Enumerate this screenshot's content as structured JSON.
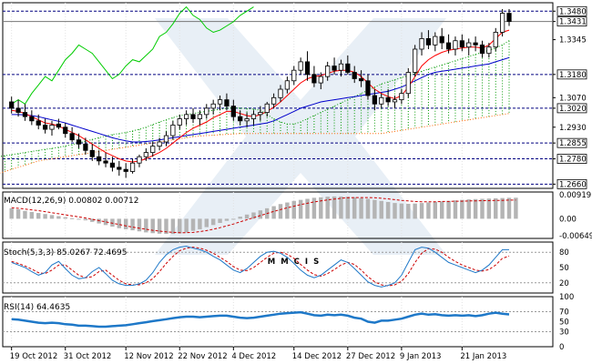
{
  "chart_data": [
    {
      "type": "candlestick",
      "name": "price",
      "ylim": [
        1.264,
        1.352
      ],
      "price_ticks": [
        "1.3480",
        "1.3431",
        "1.3345",
        "1.3180",
        "1.3070",
        "1.3020",
        "1.2930",
        "1.2855",
        "1.2780",
        "1.2660"
      ],
      "hlines": [
        1.348,
        1.318,
        1.302,
        1.2855,
        1.278,
        1.266
      ],
      "boxed_ticks": [
        "1.3480",
        "1.3431",
        "1.3180",
        "1.3020",
        "1.2855",
        "1.2780",
        "1.2660"
      ],
      "current_price": 1.3431,
      "x_labels": [
        "19 Oct 2012",
        "31 Oct 2012",
        "12 Nov 2012",
        "22 Nov 2012",
        "4 Dec 2012",
        "14 Dec 2012",
        "27 Dec 2012",
        "9 Jan 2013",
        "21 Jan 2013"
      ],
      "ohlc": [
        [
          1.305,
          1.3075,
          1.2995,
          1.302
        ],
        [
          1.302,
          1.306,
          1.298,
          1.3
        ],
        [
          1.3,
          1.304,
          1.296,
          1.298
        ],
        [
          1.298,
          1.301,
          1.294,
          1.296
        ],
        [
          1.296,
          1.299,
          1.292,
          1.294
        ],
        [
          1.294,
          1.297,
          1.29,
          1.292
        ],
        [
          1.292,
          1.296,
          1.289,
          1.294
        ],
        [
          1.2945,
          1.297,
          1.292,
          1.293
        ],
        [
          1.293,
          1.295,
          1.288,
          1.29
        ],
        [
          1.29,
          1.293,
          1.286,
          1.287
        ],
        [
          1.287,
          1.29,
          1.283,
          1.285
        ],
        [
          1.285,
          1.288,
          1.28,
          1.282
        ],
        [
          1.282,
          1.285,
          1.277,
          1.279
        ],
        [
          1.279,
          1.282,
          1.275,
          1.277
        ],
        [
          1.277,
          1.281,
          1.274,
          1.276
        ],
        [
          1.276,
          1.279,
          1.272,
          1.274
        ],
        [
          1.274,
          1.277,
          1.27,
          1.273
        ],
        [
          1.273,
          1.276,
          1.269,
          1.272
        ],
        [
          1.272,
          1.278,
          1.271,
          1.276
        ],
        [
          1.276,
          1.28,
          1.274,
          1.279
        ],
        [
          1.279,
          1.283,
          1.277,
          1.281
        ],
        [
          1.281,
          1.286,
          1.279,
          1.284
        ],
        [
          1.284,
          1.288,
          1.282,
          1.286
        ],
        [
          1.286,
          1.291,
          1.284,
          1.289
        ],
        [
          1.289,
          1.296,
          1.287,
          1.294
        ],
        [
          1.294,
          1.299,
          1.292,
          1.297
        ],
        [
          1.297,
          1.301,
          1.294,
          1.299
        ],
        [
          1.299,
          1.302,
          1.295,
          1.297
        ],
        [
          1.297,
          1.301,
          1.294,
          1.299
        ],
        [
          1.299,
          1.304,
          1.297,
          1.302
        ],
        [
          1.302,
          1.306,
          1.299,
          1.304
        ],
        [
          1.304,
          1.308,
          1.301,
          1.306
        ],
        [
          1.306,
          1.309,
          1.301,
          1.303
        ],
        [
          1.303,
          1.306,
          1.296,
          1.298
        ],
        [
          1.298,
          1.301,
          1.294,
          1.296
        ],
        [
          1.296,
          1.3,
          1.293,
          1.297
        ],
        [
          1.297,
          1.301,
          1.294,
          1.299
        ],
        [
          1.299,
          1.303,
          1.296,
          1.3
        ],
        [
          1.3,
          1.305,
          1.298,
          1.304
        ],
        [
          1.304,
          1.309,
          1.302,
          1.307
        ],
        [
          1.307,
          1.313,
          1.305,
          1.311
        ],
        [
          1.311,
          1.317,
          1.309,
          1.315
        ],
        [
          1.315,
          1.322,
          1.313,
          1.32
        ],
        [
          1.32,
          1.326,
          1.318,
          1.324
        ],
        [
          1.324,
          1.329,
          1.315,
          1.318
        ],
        [
          1.318,
          1.322,
          1.312,
          1.314
        ],
        [
          1.314,
          1.319,
          1.311,
          1.317
        ],
        [
          1.317,
          1.324,
          1.315,
          1.322
        ],
        [
          1.322,
          1.326,
          1.318,
          1.32
        ],
        [
          1.32,
          1.325,
          1.317,
          1.323
        ],
        [
          1.323,
          1.327,
          1.318,
          1.319
        ],
        [
          1.319,
          1.322,
          1.314,
          1.316
        ],
        [
          1.316,
          1.32,
          1.312,
          1.315
        ],
        [
          1.315,
          1.318,
          1.306,
          1.308
        ],
        [
          1.308,
          1.311,
          1.301,
          1.304
        ],
        [
          1.304,
          1.309,
          1.302,
          1.307
        ],
        [
          1.307,
          1.311,
          1.303,
          1.305
        ],
        [
          1.305,
          1.308,
          1.302,
          1.306
        ],
        [
          1.306,
          1.311,
          1.304,
          1.309
        ],
        [
          1.309,
          1.321,
          1.307,
          1.319
        ],
        [
          1.319,
          1.332,
          1.317,
          1.33
        ],
        [
          1.33,
          1.338,
          1.327,
          1.335
        ],
        [
          1.335,
          1.339,
          1.33,
          1.332
        ],
        [
          1.332,
          1.338,
          1.329,
          1.336
        ],
        [
          1.336,
          1.34,
          1.33,
          1.333
        ],
        [
          1.333,
          1.337,
          1.328,
          1.33
        ],
        [
          1.33,
          1.336,
          1.327,
          1.334
        ],
        [
          1.334,
          1.337,
          1.329,
          1.331
        ],
        [
          1.331,
          1.335,
          1.327,
          1.333
        ],
        [
          1.333,
          1.336,
          1.329,
          1.332
        ],
        [
          1.332,
          1.334,
          1.326,
          1.328
        ],
        [
          1.328,
          1.333,
          1.326,
          1.331
        ],
        [
          1.331,
          1.34,
          1.329,
          1.338
        ],
        [
          1.338,
          1.349,
          1.336,
          1.347
        ],
        [
          1.347,
          1.349,
          1.341,
          1.3431
        ]
      ],
      "tenkan": [
        1.301,
        1.3005,
        1.2995,
        1.298,
        1.2965,
        1.295,
        1.2945,
        1.2935,
        1.292,
        1.2905,
        1.289,
        1.287,
        1.285,
        1.283,
        1.281,
        1.2795,
        1.278,
        1.277,
        1.2765,
        1.277,
        1.278,
        1.2795,
        1.281,
        1.283,
        1.2855,
        1.288,
        1.2905,
        1.2925,
        1.294,
        1.2955,
        1.2975,
        1.299,
        1.3005,
        1.3005,
        1.2995,
        1.2985,
        1.298,
        1.299,
        1.3005,
        1.3025,
        1.305,
        1.308,
        1.311,
        1.314,
        1.316,
        1.317,
        1.3175,
        1.3185,
        1.3195,
        1.32,
        1.32,
        1.319,
        1.317,
        1.314,
        1.311,
        1.309,
        1.3075,
        1.3065,
        1.308,
        1.312,
        1.317,
        1.322,
        1.325,
        1.327,
        1.3285,
        1.3295,
        1.33,
        1.3305,
        1.331,
        1.331,
        1.3305,
        1.332,
        1.335,
        1.338,
        1.339
      ],
      "kijun": [
        1.299,
        1.299,
        1.2988,
        1.2985,
        1.298,
        1.2972,
        1.2965,
        1.2958,
        1.295,
        1.294,
        1.293,
        1.292,
        1.291,
        1.29,
        1.289,
        1.288,
        1.2872,
        1.2865,
        1.286,
        1.286,
        1.2862,
        1.2865,
        1.287,
        1.2875,
        1.288,
        1.2885,
        1.289,
        1.2895,
        1.29,
        1.2905,
        1.291,
        1.2915,
        1.292,
        1.2925,
        1.293,
        1.2935,
        1.294,
        1.2945,
        1.295,
        1.296,
        1.2975,
        1.299,
        1.3005,
        1.302,
        1.303,
        1.304,
        1.305,
        1.3055,
        1.306,
        1.3065,
        1.307,
        1.3075,
        1.308,
        1.3085,
        1.309,
        1.3095,
        1.31,
        1.311,
        1.312,
        1.3135,
        1.315,
        1.3165,
        1.318,
        1.319,
        1.3195,
        1.32,
        1.3205,
        1.321,
        1.3215,
        1.322,
        1.3225,
        1.323,
        1.324,
        1.325,
        1.326
      ],
      "chikou": [
        1.304,
        1.306,
        1.304,
        1.309,
        1.313,
        1.317,
        1.315,
        1.32,
        1.325,
        1.328,
        1.332,
        1.33,
        1.328,
        1.324,
        1.32,
        1.316,
        1.318,
        1.322,
        1.325,
        1.324,
        1.327,
        1.33,
        1.336,
        1.338,
        1.342,
        1.347,
        1.35,
        1.346,
        1.344,
        1.34,
        1.338,
        1.339,
        1.341,
        1.343,
        1.346,
        1.348,
        1.35
      ],
      "span_a": [
        1.276,
        1.2765,
        1.277,
        1.2775,
        1.278,
        1.2785,
        1.279,
        1.2795,
        1.28,
        1.2805,
        1.281,
        1.2815,
        1.282,
        1.2825,
        1.283,
        1.2835,
        1.284,
        1.2848,
        1.2856,
        1.2864,
        1.2872,
        1.288,
        1.2888,
        1.2895,
        1.29,
        1.2905,
        1.2912,
        1.292,
        1.293,
        1.2942,
        1.2955,
        1.2965,
        1.2975,
        1.2985,
        1.299,
        1.2995,
        1.3,
        1.3005,
        1.301,
        1.3015,
        1.302,
        1.3022,
        1.302,
        1.3018,
        1.3016,
        1.301,
        1.299,
        1.297,
        1.2955,
        1.2945,
        1.2945,
        1.2955,
        1.297,
        1.2985,
        1.3,
        1.3015,
        1.303,
        1.3045,
        1.306,
        1.3075,
        1.309,
        1.3105,
        1.312,
        1.3135,
        1.3145,
        1.3155,
        1.3165,
        1.3175,
        1.3185,
        1.3195,
        1.3205,
        1.3215,
        1.3225,
        1.3235,
        1.3245,
        1.3255,
        1.3265,
        1.3275,
        1.3285,
        1.3295,
        1.3305,
        1.332,
        1.334
      ],
      "span_b": [
        1.265,
        1.266,
        1.267,
        1.268,
        1.269,
        1.27,
        1.271,
        1.272,
        1.273,
        1.274,
        1.275,
        1.276,
        1.277,
        1.2775,
        1.278,
        1.2785,
        1.279,
        1.2795,
        1.28,
        1.2805,
        1.281,
        1.2815,
        1.282,
        1.2825,
        1.283,
        1.2835,
        1.284,
        1.2845,
        1.285,
        1.2855,
        1.286,
        1.2865,
        1.287,
        1.2875,
        1.288,
        1.2885,
        1.2888,
        1.289,
        1.2892,
        1.2894,
        1.2896,
        1.2898,
        1.29,
        1.29,
        1.29,
        1.29,
        1.29,
        1.29,
        1.29,
        1.29,
        1.29,
        1.29,
        1.29,
        1.29,
        1.29,
        1.29,
        1.29,
        1.29,
        1.29,
        1.29,
        1.29,
        1.29,
        1.29,
        1.29,
        1.2905,
        1.291,
        1.2915,
        1.292,
        1.2925,
        1.293,
        1.2935,
        1.294,
        1.2945,
        1.295,
        1.2955,
        1.296,
        1.2965,
        1.297,
        1.2975,
        1.298,
        1.2985,
        1.299,
        1.2995
      ],
      "colors": {
        "bull": "#ffffff",
        "bear": "#000000",
        "tenkan": "#ff0000",
        "kijun": "#0000cc",
        "chikou": "#00cc00",
        "cloud_a": "#009900",
        "cloud_b": "#ff6600",
        "hline": "#000080",
        "grid": "#c8c8c8"
      }
    },
    {
      "type": "macd",
      "name": "macd",
      "label": "MACD(12,26,9) 0.00802 0.00712",
      "ticks": [
        "0.00919",
        "0.00",
        "-0.00649"
      ],
      "ylim": [
        -0.0075,
        0.0102
      ],
      "tick_values": [
        0.00919,
        0.0,
        -0.00649
      ],
      "histogram": [
        0.004,
        0.0036,
        0.003,
        0.0026,
        0.0022,
        0.0018,
        0.0014,
        0.001,
        0.0006,
        0.0002,
        -0.0002,
        -0.0006,
        -0.0012,
        -0.0018,
        -0.0024,
        -0.003,
        -0.0036,
        -0.004,
        -0.0044,
        -0.0048,
        -0.0052,
        -0.0055,
        -0.0057,
        -0.0058,
        -0.0058,
        -0.0056,
        -0.0052,
        -0.0046,
        -0.004,
        -0.0032,
        -0.0024,
        -0.0016,
        -0.0008,
        0.0,
        0.0008,
        0.0016,
        0.0024,
        0.0032,
        0.004,
        0.0048,
        0.0056,
        0.0062,
        0.0068,
        0.0072,
        0.0076,
        0.008,
        0.0082,
        0.0084,
        0.0085,
        0.0085,
        0.0084,
        0.0082,
        0.0079,
        0.0076,
        0.0072,
        0.0068,
        0.0064,
        0.006,
        0.0058,
        0.0057,
        0.0058,
        0.006,
        0.0062,
        0.0064,
        0.0066,
        0.0068,
        0.007,
        0.0072,
        0.0074,
        0.0075,
        0.0076,
        0.0077,
        0.0078,
        0.0079,
        0.008,
        0.00802
      ],
      "signal": [
        0.0042,
        0.004,
        0.0037,
        0.0034,
        0.0031,
        0.0027,
        0.0023,
        0.0019,
        0.0015,
        0.0011,
        0.0007,
        0.0003,
        -0.0002,
        -0.0007,
        -0.0012,
        -0.0017,
        -0.0022,
        -0.0027,
        -0.0032,
        -0.0036,
        -0.004,
        -0.0044,
        -0.0047,
        -0.005,
        -0.0052,
        -0.0053,
        -0.0053,
        -0.0052,
        -0.0049,
        -0.0045,
        -0.004,
        -0.0034,
        -0.0027,
        -0.002,
        -0.0012,
        -0.0004,
        0.0004,
        0.0012,
        0.002,
        0.0028,
        0.0035,
        0.0042,
        0.0048,
        0.0054,
        0.0059,
        0.0064,
        0.0068,
        0.0072,
        0.0075,
        0.0078,
        0.008,
        0.0081,
        0.0081,
        0.0081,
        0.008,
        0.0078,
        0.0076,
        0.0073,
        0.007,
        0.0068,
        0.0066,
        0.0065,
        0.0065,
        0.0065,
        0.0066,
        0.0066,
        0.0067,
        0.0067,
        0.0068,
        0.0068,
        0.0069,
        0.0069,
        0.007,
        0.007,
        0.0071,
        0.00712
      ],
      "colors": {
        "hist": "#b4b4b4",
        "signal": "#cc0000"
      }
    },
    {
      "type": "stochastic",
      "name": "stoch",
      "label": "Stoch(5,3,3) 85.0267 72.4695",
      "ticks": [
        "80",
        "50",
        "20"
      ],
      "ylim": [
        0,
        100
      ],
      "tick_values": [
        80,
        50,
        20
      ],
      "k": [
        60,
        55,
        50,
        42,
        35,
        40,
        55,
        62,
        48,
        35,
        28,
        30,
        42,
        50,
        38,
        25,
        18,
        15,
        15,
        18,
        25,
        40,
        60,
        75,
        85,
        90,
        92,
        88,
        85,
        80,
        72,
        65,
        55,
        45,
        40,
        48,
        60,
        72,
        80,
        82,
        78,
        70,
        58,
        45,
        35,
        30,
        35,
        45,
        55,
        65,
        60,
        48,
        35,
        22,
        15,
        12,
        15,
        20,
        35,
        60,
        85,
        90,
        88,
        80,
        70,
        60,
        55,
        50,
        45,
        40,
        45,
        55,
        70,
        85,
        85.0267
      ],
      "d": [
        62,
        58,
        53,
        47,
        40,
        38,
        45,
        55,
        55,
        45,
        35,
        30,
        32,
        42,
        45,
        35,
        25,
        18,
        16,
        16,
        20,
        28,
        42,
        58,
        72,
        83,
        88,
        90,
        88,
        84,
        78,
        70,
        62,
        52,
        45,
        44,
        50,
        60,
        70,
        78,
        80,
        76,
        68,
        56,
        45,
        36,
        33,
        38,
        46,
        55,
        60,
        56,
        45,
        32,
        22,
        16,
        14,
        16,
        23,
        38,
        60,
        78,
        87,
        86,
        80,
        70,
        62,
        55,
        50,
        45,
        43,
        46,
        55,
        68,
        72.4695
      ],
      "colors": {
        "k": "#1e78c8",
        "d": "#cc0000"
      }
    },
    {
      "type": "rsi",
      "name": "rsi",
      "label": "RSI(14) 64.4635",
      "ticks": [
        "100",
        "70",
        "50",
        "30",
        "0"
      ],
      "ylim": [
        0,
        100
      ],
      "tick_values": [
        100,
        70,
        50,
        30,
        0
      ],
      "values": [
        55,
        54,
        52,
        50,
        48,
        47,
        48,
        47,
        45,
        44,
        42,
        42,
        41,
        40,
        40,
        41,
        42,
        43,
        45,
        47,
        49,
        51,
        53,
        55,
        57,
        59,
        60,
        60,
        59,
        60,
        61,
        62,
        62,
        60,
        58,
        57,
        58,
        60,
        62,
        64,
        66,
        67,
        68,
        69,
        66,
        63,
        62,
        64,
        63,
        64,
        62,
        58,
        56,
        50,
        48,
        52,
        52,
        54,
        56,
        60,
        64,
        66,
        64,
        65,
        63,
        62,
        63,
        62,
        63,
        61,
        63,
        66,
        68,
        66,
        64.4635
      ],
      "colors": {
        "line": "#1e78c8"
      }
    }
  ],
  "watermark": "MMCIS"
}
